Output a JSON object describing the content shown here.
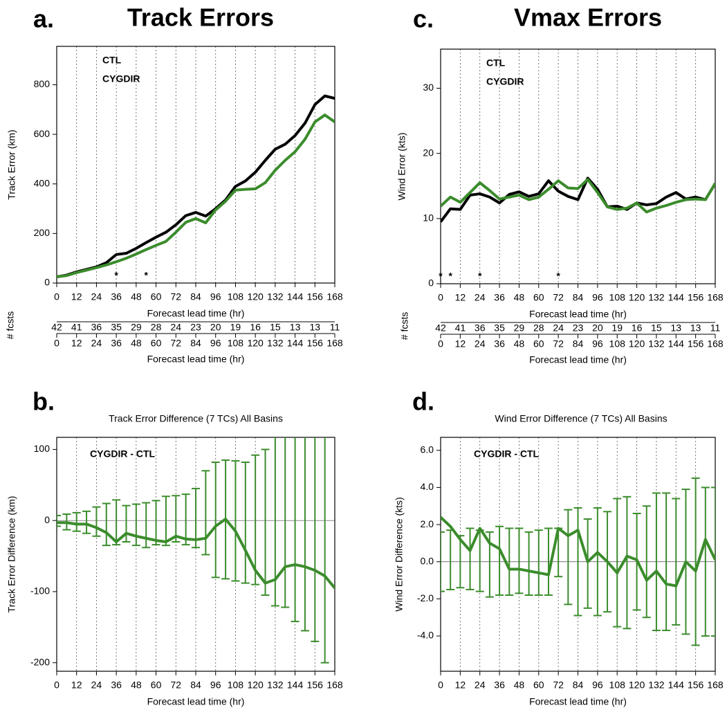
{
  "chart_data": [
    {
      "type": "line",
      "panel_label": "a.",
      "title": "Track Errors",
      "ylabel": "Track Error (km)",
      "xlabel": "Forecast lead time (hr)",
      "x": [
        0,
        6,
        12,
        18,
        24,
        30,
        36,
        42,
        48,
        54,
        60,
        66,
        72,
        78,
        84,
        90,
        96,
        102,
        108,
        114,
        120,
        126,
        132,
        138,
        144,
        150,
        156,
        162,
        168
      ],
      "series": [
        {
          "name": "CTL",
          "color": "#000000",
          "values": [
            25,
            32,
            45,
            55,
            65,
            82,
            115,
            120,
            140,
            163,
            185,
            205,
            235,
            272,
            285,
            270,
            300,
            335,
            390,
            412,
            447,
            495,
            540,
            560,
            595,
            645,
            720,
            755,
            745
          ]
        },
        {
          "name": "CYGDIR",
          "color": "#3b8c2c",
          "values": [
            25,
            30,
            42,
            52,
            62,
            73,
            86,
            100,
            117,
            135,
            152,
            168,
            205,
            245,
            260,
            243,
            295,
            330,
            375,
            378,
            380,
            405,
            455,
            495,
            530,
            580,
            650,
            678,
            650
          ]
        }
      ],
      "xlim": [
        0,
        168
      ],
      "ylim": [
        0,
        955
      ],
      "xticks": [
        0,
        12,
        24,
        36,
        48,
        60,
        72,
        84,
        96,
        108,
        120,
        132,
        144,
        156,
        168
      ],
      "yticks": [
        0,
        200,
        400,
        600,
        800
      ],
      "xgrid": true,
      "significance": {
        "marker": "*",
        "x": [
          36,
          54
        ],
        "color": "#3b8c2c"
      },
      "fcsts": {
        "label": "# fcsts",
        "values": [
          42,
          41,
          36,
          35,
          29,
          28,
          24,
          23,
          20,
          19,
          16,
          15,
          13,
          13,
          11
        ],
        "color": "#3b8c2c",
        "xlabel": "Forecast lead time (hr)"
      }
    },
    {
      "type": "errorbar",
      "panel_label": "b.",
      "title": "Track Error Difference (7 TCs) All Basins",
      "ylabel": "Track Error Difference (km)",
      "xlabel": "Forecast lead time (hr)",
      "annotation": "CYGDIR - CTL",
      "color": "#3b8c2c",
      "x": [
        0,
        6,
        12,
        18,
        24,
        30,
        36,
        42,
        48,
        54,
        60,
        66,
        72,
        78,
        84,
        90,
        96,
        102,
        108,
        114,
        120,
        126,
        132,
        138,
        144,
        150,
        156,
        162,
        168
      ],
      "values": [
        -3,
        -3,
        -5,
        -5,
        -10,
        -17,
        -30,
        -18,
        -22,
        -25,
        -28,
        -30,
        -22,
        -26,
        -27,
        -25,
        -8,
        2,
        -15,
        -42,
        -70,
        -88,
        -83,
        -65,
        -62,
        -65,
        -70,
        -78,
        -95
      ],
      "error_high": [
        7,
        9,
        11,
        13,
        19,
        24,
        29,
        21,
        23,
        25,
        28,
        34,
        35,
        37,
        45,
        70,
        82,
        85,
        84,
        82,
        92,
        100,
        140,
        150,
        160,
        170,
        180,
        190,
        null
      ],
      "error_low": [
        -8,
        -13,
        -15,
        -18,
        -22,
        -35,
        -34,
        -30,
        -35,
        -38,
        -34,
        -35,
        -30,
        -34,
        -38,
        -48,
        -80,
        -82,
        -85,
        -88,
        -90,
        -105,
        -120,
        -122,
        -142,
        -155,
        -170,
        -200,
        null
      ],
      "xlim": [
        0,
        168
      ],
      "ylim": [
        -212,
        117
      ],
      "xticks": [
        0,
        12,
        24,
        36,
        48,
        60,
        72,
        84,
        96,
        108,
        120,
        132,
        144,
        156,
        168
      ],
      "yticks": [
        -200,
        -100,
        0,
        100
      ],
      "xgrid": true,
      "zero_line": true
    },
    {
      "type": "line",
      "panel_label": "c.",
      "title": "Vmax Errors",
      "ylabel": "Wind Error (kts)",
      "xlabel": "Forecast lead time (hr)",
      "x": [
        0,
        6,
        12,
        18,
        24,
        30,
        36,
        42,
        48,
        54,
        60,
        66,
        72,
        78,
        84,
        90,
        96,
        102,
        108,
        114,
        120,
        126,
        132,
        138,
        144,
        150,
        156,
        162,
        168
      ],
      "series": [
        {
          "name": "CTL",
          "color": "#000000",
          "values": [
            9.5,
            11.5,
            11.4,
            13.6,
            13.8,
            13.3,
            12.4,
            13.7,
            14.1,
            13.4,
            13.8,
            15.8,
            14.2,
            13.4,
            12.9,
            16.2,
            14.5,
            11.8,
            11.9,
            11.4,
            12.4,
            12.1,
            12.3,
            13.3,
            14.0,
            13.0,
            13.3,
            12.9,
            15.4
          ]
        },
        {
          "name": "CYGDIR",
          "color": "#3b8c2c",
          "values": [
            11.9,
            13.3,
            12.5,
            14.0,
            15.5,
            14.3,
            13.0,
            13.3,
            13.6,
            12.9,
            13.3,
            14.5,
            15.8,
            14.7,
            14.6,
            16.0,
            14.0,
            11.8,
            11.4,
            11.6,
            12.4,
            11.0,
            11.6,
            12.0,
            12.5,
            12.9,
            13.0,
            12.9,
            15.4
          ]
        }
      ],
      "xlim": [
        0,
        168
      ],
      "ylim": [
        0,
        36
      ],
      "xticks": [
        0,
        12,
        24,
        36,
        48,
        60,
        72,
        84,
        96,
        108,
        120,
        132,
        144,
        156,
        168
      ],
      "yticks": [
        0,
        10,
        20,
        30
      ],
      "xgrid": true,
      "significance": {
        "marker": "*",
        "x": [
          0,
          6,
          24,
          72
        ],
        "color": "#000000"
      },
      "fcsts": {
        "label": "# fcsts",
        "values": [
          42,
          41,
          36,
          35,
          29,
          28,
          24,
          23,
          20,
          19,
          16,
          15,
          13,
          13,
          11
        ],
        "color": "#3b8c2c",
        "xlabel": "Forecast lead time (hr)"
      }
    },
    {
      "type": "errorbar",
      "panel_label": "d.",
      "title": "Wind Error Difference (7 TCs) All Basins",
      "ylabel": "Wind Error Difference (kts)",
      "xlabel": "Forecast lead time (hr)",
      "annotation": "CYGDIR - CTL",
      "color": "#3b8c2c",
      "x": [
        0,
        6,
        12,
        18,
        24,
        30,
        36,
        42,
        48,
        54,
        60,
        66,
        72,
        78,
        84,
        90,
        96,
        102,
        108,
        114,
        120,
        126,
        132,
        138,
        144,
        150,
        156,
        162,
        168
      ],
      "values": [
        2.4,
        1.9,
        1.2,
        0.6,
        1.8,
        1.0,
        0.7,
        -0.4,
        -0.4,
        -0.5,
        -0.6,
        -0.7,
        1.8,
        1.4,
        1.7,
        0.0,
        0.5,
        0.0,
        -0.6,
        0.3,
        0.1,
        -1.0,
        -0.5,
        -1.2,
        -1.3,
        0.0,
        -0.5,
        1.2,
        0.1
      ],
      "error_high": [
        1.6,
        1.7,
        1.4,
        1.8,
        1.7,
        1.6,
        1.9,
        1.8,
        1.8,
        1.6,
        1.7,
        1.8,
        1.8,
        2.8,
        2.9,
        2.3,
        2.9,
        2.7,
        3.4,
        3.5,
        2.6,
        3.0,
        3.7,
        3.7,
        3.4,
        3.9,
        4.5,
        4.0,
        4.0
      ],
      "error_low": [
        -1.6,
        -1.5,
        -1.4,
        -1.5,
        -1.6,
        -1.9,
        -1.8,
        -1.8,
        -1.7,
        -1.8,
        -1.8,
        -1.8,
        -0.8,
        -2.3,
        -2.9,
        -2.5,
        -2.9,
        -2.7,
        -3.5,
        -3.6,
        -2.6,
        -3.0,
        -3.7,
        -3.7,
        -3.4,
        -3.9,
        -4.5,
        -4.0,
        -4.0
      ],
      "xlim": [
        0,
        168
      ],
      "ylim": [
        -5.9,
        6.7
      ],
      "xticks": [
        0,
        12,
        24,
        36,
        48,
        60,
        72,
        84,
        96,
        108,
        120,
        132,
        144,
        156,
        168
      ],
      "yticks": [
        {
          "value": -4,
          "label": "-4.0"
        },
        {
          "value": -2,
          "label": "-2.0"
        },
        {
          "value": 0,
          "label": "0.0"
        },
        {
          "value": 2,
          "label": "2.0"
        },
        {
          "value": 4,
          "label": "4.0"
        },
        {
          "value": 6,
          "label": "6.0"
        }
      ],
      "xgrid": true,
      "zero_line": true
    }
  ]
}
